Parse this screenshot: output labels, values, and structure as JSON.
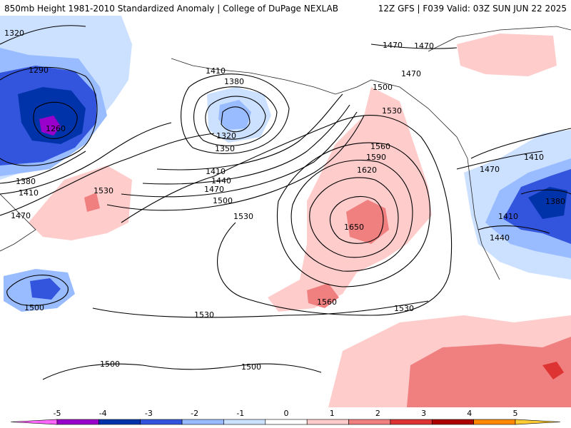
{
  "header": {
    "title_left": "850mb Height 1981-2010 Standardized Anomaly | College of DuPage NEXLAB",
    "title_right": "12Z GFS | F039 Valid: 03Z SUN JUN 22 2025"
  },
  "map": {
    "field": "850mb geopotential height contours with standardized anomaly shading",
    "contour_labels": [
      {
        "text": "1320",
        "name": "label-1320-nw"
      },
      {
        "text": "1290",
        "name": "label-1290-west-low"
      },
      {
        "text": "1260",
        "name": "label-1260-west-low-center"
      },
      {
        "text": "1380",
        "name": "label-1380-west"
      },
      {
        "text": "1410",
        "name": "label-1410-west"
      },
      {
        "text": "1470",
        "name": "label-1470-west"
      },
      {
        "text": "1530",
        "name": "label-1530-west"
      },
      {
        "text": "1500",
        "name": "label-1500-sw-low"
      },
      {
        "text": "1410",
        "name": "label-1410-aleutian"
      },
      {
        "text": "1380",
        "name": "label-1380-aleutian"
      },
      {
        "text": "1320",
        "name": "label-1320-aleutian-center"
      },
      {
        "text": "1350",
        "name": "label-1350-aleutian"
      },
      {
        "text": "1410",
        "name": "label-1410-north-pacific"
      },
      {
        "text": "1440",
        "name": "label-1440-north-pacific"
      },
      {
        "text": "1470",
        "name": "label-1470-north-pacific"
      },
      {
        "text": "1500",
        "name": "label-1500-north-pacific"
      },
      {
        "text": "1530",
        "name": "label-1530-central"
      },
      {
        "text": "1560",
        "name": "label-1560-high"
      },
      {
        "text": "1590",
        "name": "label-1590-high"
      },
      {
        "text": "1620",
        "name": "label-1620-high"
      },
      {
        "text": "1650",
        "name": "label-1650-high-center"
      },
      {
        "text": "1530",
        "name": "label-1530-gulf-alaska"
      },
      {
        "text": "1500",
        "name": "label-1500-gulf-alaska"
      },
      {
        "text": "1470",
        "name": "label-1470-canada-1"
      },
      {
        "text": "1470",
        "name": "label-1470-canada-2"
      },
      {
        "text": "1470",
        "name": "label-1470-canada-3"
      },
      {
        "text": "1410",
        "name": "label-1410-east-1"
      },
      {
        "text": "1470",
        "name": "label-1470-east"
      },
      {
        "text": "1380",
        "name": "label-1380-east"
      },
      {
        "text": "1410",
        "name": "label-1410-east-2"
      },
      {
        "text": "1440",
        "name": "label-1440-east"
      },
      {
        "text": "1560",
        "name": "label-1560-hawaii"
      },
      {
        "text": "1530",
        "name": "label-1530-south-west"
      },
      {
        "text": "1530",
        "name": "label-1530-south-east"
      },
      {
        "text": "1500",
        "name": "label-1500-south-1"
      },
      {
        "text": "1500",
        "name": "label-1500-south-2"
      }
    ]
  },
  "colorbar": {
    "ticks": [
      "-5",
      "-4",
      "-3",
      "-2",
      "-1",
      "0",
      "1",
      "2",
      "3",
      "4",
      "5"
    ],
    "colors": [
      "#ff66ff",
      "#9900cc",
      "#0033aa",
      "#3355dd",
      "#99bbff",
      "#cce0ff",
      "#ffffff",
      "#ffcccc",
      "#f08080",
      "#dd3333",
      "#aa0000",
      "#ff8800",
      "#ffcc33"
    ]
  }
}
